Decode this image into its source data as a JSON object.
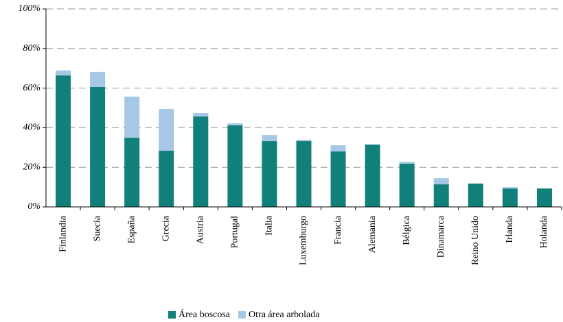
{
  "chart_data": {
    "type": "stacked_bar",
    "categories": [
      "Finlandia",
      "Suecia",
      "España",
      "Grecia",
      "Austria",
      "Portugal",
      "Italia",
      "Luxemburgo",
      "Francia",
      "Alemania",
      "Bélgica",
      "Dinamarca",
      "Reino Unido",
      "Irlanda",
      "Holanda"
    ],
    "series": [
      {
        "name": "Área boscosa",
        "color": "#12807a",
        "values": [
          66.4,
          60.6,
          35,
          28.4,
          45.7,
          41.2,
          33.2,
          33.2,
          28,
          31.5,
          21.8,
          11.4,
          11.8,
          9.3,
          9.3
        ]
      },
      {
        "name": "Otra área arbolada",
        "color": "#a6c8e6",
        "values": [
          2.5,
          7.6,
          20.7,
          21.1,
          1.7,
          1.0,
          3.1,
          0.7,
          3.1,
          0,
          1.0,
          3.1,
          0,
          0.7,
          0
        ]
      }
    ],
    "ylim": [
      0,
      100
    ],
    "yticks": [
      {
        "value": 0,
        "label": "0%"
      },
      {
        "value": 20,
        "label": "20%"
      },
      {
        "value": 40,
        "label": "40%"
      },
      {
        "value": 60,
        "label": "60%"
      },
      {
        "value": 80,
        "label": "80%"
      },
      {
        "value": 100,
        "label": "100%"
      }
    ],
    "grid": true,
    "legend": "bottom"
  }
}
